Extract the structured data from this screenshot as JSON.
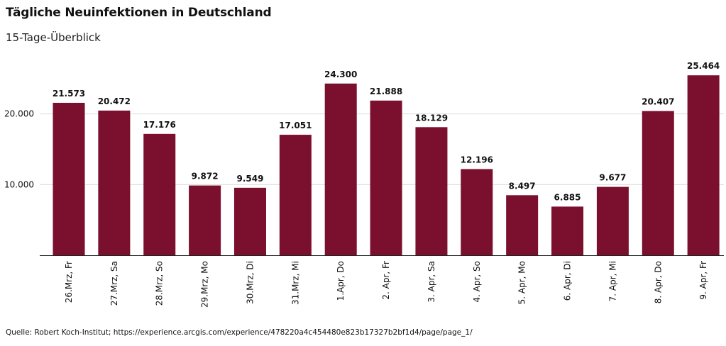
{
  "page": {
    "title": "Tägliche Neuinfektionen in Deutschland",
    "subtitle": "15-Tage-Überblick",
    "source": "Quelle: Robert Koch-Institut; https://experience.arcgis.com/experience/478220a4c454480e823b17327b2bf1d4/page/page_1/"
  },
  "chart_data": {
    "type": "bar",
    "title": "Tägliche Neuinfektionen in Deutschland",
    "subtitle": "15-Tage-Überblick",
    "categories": [
      "26.Mrz, Fr",
      "27.Mrz, Sa",
      "28.Mrz, So",
      "29.Mrz, Mo",
      "30.Mrz, Di",
      "31.Mrz, Mi",
      "1.Apr, Do",
      "2. Apr, Fr",
      "3. Apr, Sa",
      "4. Apr, So",
      "5. Apr, Mo",
      "6. Apr, Di",
      "7. Apr, Mi",
      "8. Apr, Do",
      "9. Apr, Fr"
    ],
    "values": [
      21573,
      20472,
      17176,
      9872,
      9549,
      17051,
      24300,
      21888,
      18129,
      12196,
      8497,
      6885,
      9677,
      20407,
      25464
    ],
    "value_labels": [
      "21.573",
      "20.472",
      "17.176",
      "9.872",
      "9.549",
      "17.051",
      "24.300",
      "21.888",
      "18.129",
      "12.196",
      "8.497",
      "6.885",
      "9.677",
      "20.407",
      "25.464"
    ],
    "yticks": [
      10000,
      20000
    ],
    "ytick_labels": [
      "10.000",
      "20.000"
    ],
    "ylim": [
      0,
      29500
    ],
    "xlabel": "",
    "ylabel": "",
    "grid": true,
    "legend": "none",
    "bar_color": "#7a0f2e"
  }
}
